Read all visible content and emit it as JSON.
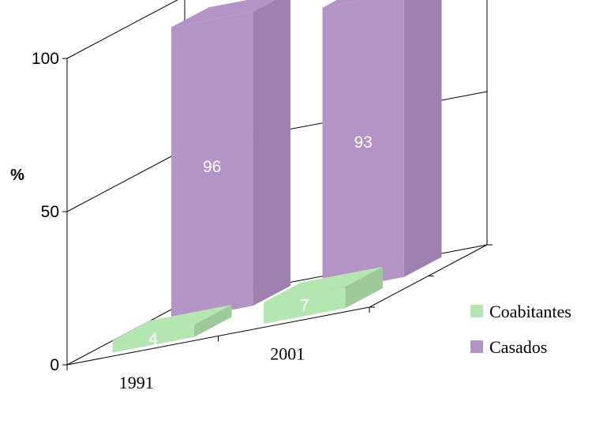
{
  "chart_data": {
    "type": "bar",
    "categories": [
      "1991",
      "2001"
    ],
    "series": [
      {
        "name": "Coabitantes",
        "values": [
          4,
          7
        ],
        "color": "#b3e6b0"
      },
      {
        "name": "Casados",
        "values": [
          96,
          93
        ],
        "color": "#b493c6"
      }
    ],
    "ylabel": "%",
    "ylim": [
      0,
      100
    ],
    "yticks": [
      "0",
      "50",
      "100"
    ],
    "legend_position": "right",
    "grid": true,
    "three_d": true
  }
}
